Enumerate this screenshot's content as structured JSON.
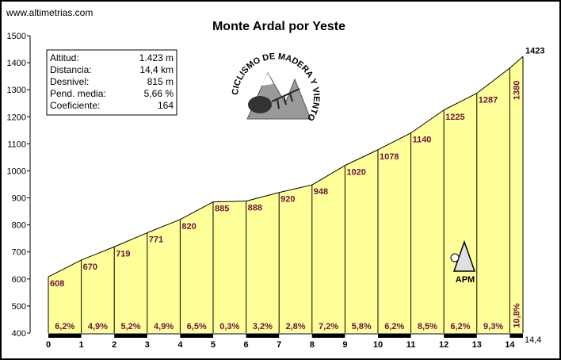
{
  "site": "www.altimetrias.com",
  "title": "Monte Ardal por Yeste",
  "stats": [
    {
      "label": "Altitud:",
      "value": "1.423 m"
    },
    {
      "label": "Distancia:",
      "value": "14,4 km"
    },
    {
      "label": "Desnivel:",
      "value": "815 m"
    },
    {
      "label": "Pend. media:",
      "value": "5,66 %"
    },
    {
      "label": "Coeficiente:",
      "value": "164"
    }
  ],
  "logo_text": "CICLISMO DE MADERA Y VIENTO",
  "apm_label": "APM",
  "colors": {
    "fill": "#ffff99",
    "text_accent": "#6b1240",
    "grid": "#000000"
  },
  "chart_data": {
    "type": "area",
    "title": "Monte Ardal por Yeste",
    "xlabel": "",
    "ylabel": "",
    "xlim": [
      0,
      14.4
    ],
    "ylim": [
      400,
      1500
    ],
    "x_ticks": [
      "0",
      "1",
      "2",
      "3",
      "4",
      "5",
      "6",
      "7",
      "8",
      "9",
      "10",
      "11",
      "12",
      "13",
      "14"
    ],
    "x_end_label": "14,4",
    "y_ticks": [
      "400",
      "500",
      "600",
      "700",
      "800",
      "900",
      "1000",
      "1100",
      "1200",
      "1300",
      "1400",
      "1500"
    ],
    "km": [
      0,
      1,
      2,
      3,
      4,
      5,
      6,
      7,
      8,
      9,
      10,
      11,
      12,
      13,
      14,
      14.4
    ],
    "altitudes": [
      608,
      670,
      719,
      771,
      820,
      885,
      888,
      920,
      948,
      1020,
      1078,
      1140,
      1225,
      1287,
      1380,
      1423
    ],
    "altitude_labels": [
      "608",
      "670",
      "719",
      "771",
      "820",
      "885",
      "888",
      "920",
      "948",
      "1020",
      "1078",
      "1140",
      "1225",
      "1287",
      "1380"
    ],
    "final_label": "1423",
    "gradients": [
      "6,2%",
      "4,9%",
      "5,2%",
      "4,9%",
      "6,5%",
      "0,3%",
      "3,2%",
      "2,8%",
      "7,2%",
      "5,8%",
      "6,2%",
      "8,5%",
      "6,2%",
      "9,3%",
      "10,8%"
    ],
    "grid": false
  }
}
